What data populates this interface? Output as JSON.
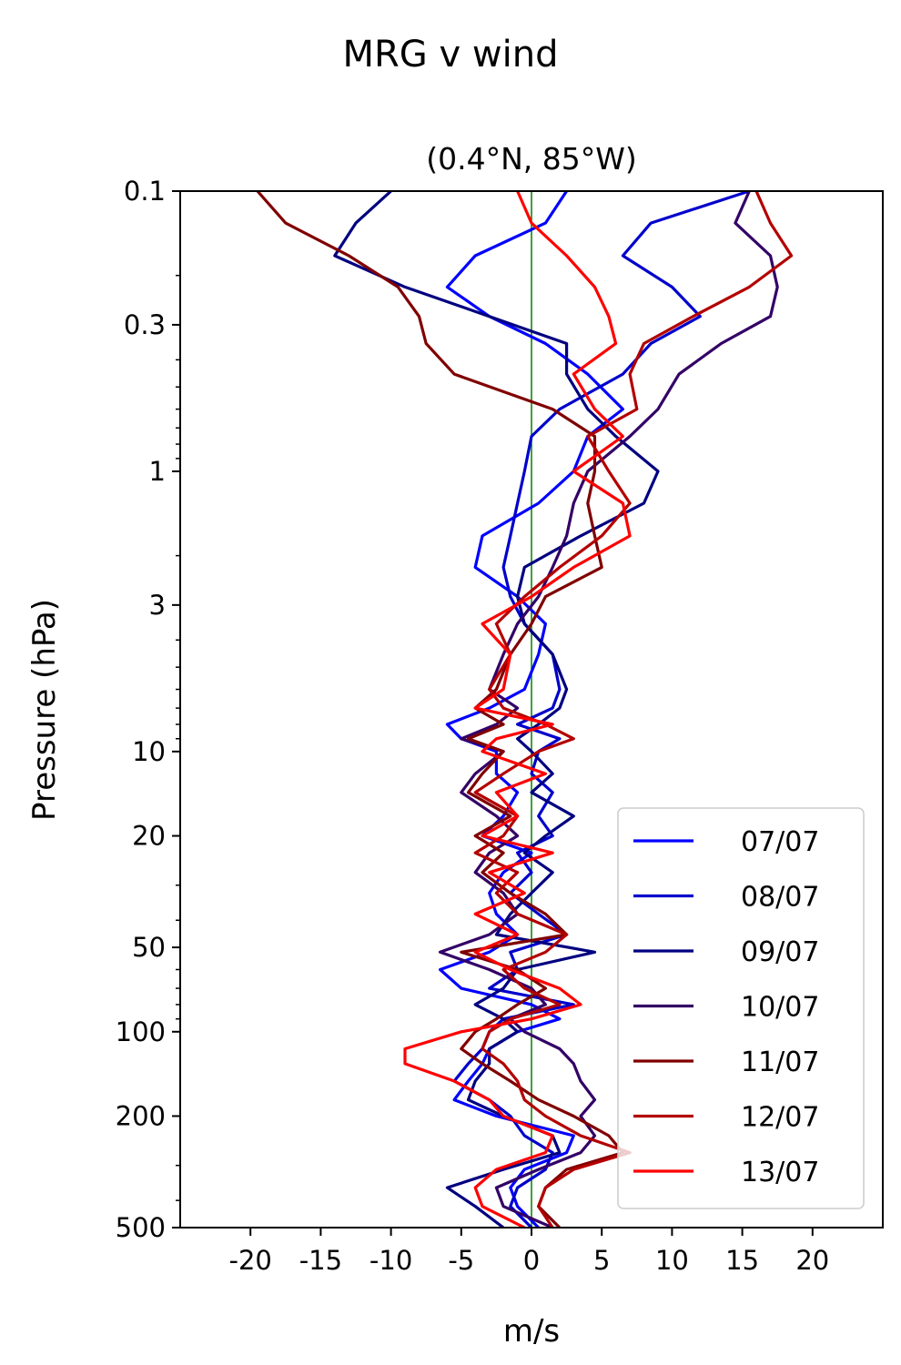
{
  "chart_data": {
    "type": "line",
    "suptitle": "MRG v wind",
    "title": "(0.4°N, 85°W)",
    "xlabel": "m/s",
    "ylabel": "Pressure (hPa)",
    "xlim": [
      -25,
      25
    ],
    "ylim": [
      500,
      0.1
    ],
    "yscale": "log",
    "x_ticks": [
      -20,
      -15,
      -10,
      -5,
      0,
      5,
      10,
      15,
      20
    ],
    "x_tick_labels": [
      "-20",
      "-15",
      "-10",
      "-5",
      "0",
      "5",
      "10",
      "15",
      "20"
    ],
    "y_ticks": [
      0.1,
      0.3,
      1,
      3,
      10,
      20,
      50,
      100,
      200,
      500
    ],
    "y_tick_labels": [
      "0.1",
      "0.3",
      "1",
      "3",
      "10",
      "20",
      "50",
      "100",
      "200",
      "500"
    ],
    "zero_line_color": "#008000",
    "legend_position": "lower right",
    "pressure_levels": [
      0.1,
      0.13,
      0.17,
      0.22,
      0.28,
      0.35,
      0.45,
      0.6,
      0.75,
      1,
      1.3,
      1.7,
      2.2,
      2.8,
      3.5,
      4.5,
      6,
      7,
      8,
      9,
      10,
      12,
      14,
      17,
      20,
      23,
      27,
      32,
      38,
      45,
      52,
      60,
      70,
      80,
      90,
      100,
      115,
      130,
      150,
      175,
      200,
      235,
      270,
      310,
      360,
      420,
      500
    ],
    "series": [
      {
        "name": "07/07",
        "color": "#0000ff",
        "values": [
          2.5,
          1.0,
          -4.0,
          -6.0,
          -3.0,
          1.0,
          4.0,
          6.5,
          4.0,
          3.0,
          0.5,
          -3.5,
          -4.0,
          -1.0,
          1.0,
          0.5,
          -0.5,
          -3.0,
          -6.0,
          -5.0,
          -2.5,
          -2.5,
          -1.0,
          -2.0,
          -3.5,
          0.0,
          -2.0,
          -3.0,
          -2.5,
          -1.0,
          -3.0,
          -6.5,
          -5.0,
          0.0,
          2.0,
          -1.0,
          -3.0,
          -3.5,
          -4.5,
          -5.5,
          -2.5,
          3.0,
          2.5,
          -0.5,
          -1.5,
          -1.0,
          0.5
        ]
      },
      {
        "name": "08/07",
        "color": "#0000cc",
        "values": [
          15.5,
          8.5,
          6.5,
          10.0,
          12.0,
          8.5,
          6.5,
          2.0,
          0.0,
          -0.5,
          -1.0,
          -1.5,
          -2.0,
          -1.5,
          -0.5,
          1.5,
          2.0,
          1.5,
          -1.0,
          2.0,
          0.5,
          0.0,
          1.5,
          0.5,
          1.5,
          -1.0,
          0.0,
          -1.5,
          0.5,
          2.5,
          -1.5,
          -1.0,
          -3.0,
          3.0,
          -2.0,
          -3.0,
          -3.5,
          -4.5,
          -5.5,
          -3.0,
          -1.5,
          -0.5,
          1.5,
          1.0,
          -1.0,
          -1.5,
          0.0
        ]
      },
      {
        "name": "09/07",
        "color": "#000080",
        "values": [
          -10.0,
          -12.5,
          -14.0,
          -9.0,
          -3.0,
          2.5,
          2.5,
          4.0,
          6.0,
          9.0,
          8.0,
          3.5,
          -0.5,
          -1.0,
          -0.5,
          1.5,
          2.5,
          2.0,
          0.5,
          -1.0,
          0.0,
          1.5,
          0.0,
          3.0,
          1.0,
          -0.5,
          1.5,
          0.0,
          -1.5,
          -2.5,
          4.5,
          -1.0,
          -2.0,
          -4.0,
          -2.0,
          -1.0,
          -3.0,
          -3.0,
          -4.0,
          -4.5,
          -2.0,
          1.5,
          2.0,
          -2.0,
          -6.0,
          -4.0,
          -2.0
        ]
      },
      {
        "name": "10/07",
        "color": "#330066",
        "values": [
          15.5,
          14.5,
          17.0,
          17.5,
          17.0,
          13.5,
          10.5,
          9.0,
          7.0,
          4.0,
          3.0,
          2.5,
          1.5,
          0.5,
          -1.0,
          -2.0,
          -3.0,
          -1.0,
          -2.5,
          -5.0,
          -2.0,
          -4.0,
          -5.0,
          -2.5,
          -1.0,
          -3.0,
          -4.0,
          -2.0,
          -1.0,
          -3.0,
          -6.5,
          -3.0,
          0.0,
          1.0,
          -1.5,
          -0.5,
          2.0,
          3.0,
          3.5,
          4.5,
          3.5,
          4.5,
          3.5,
          0.5,
          -2.5,
          -2.0,
          1.5
        ]
      },
      {
        "name": "11/07",
        "color": "#800000",
        "values": [
          -19.5,
          -17.5,
          -13.0,
          -9.5,
          -8.0,
          -7.5,
          -5.5,
          1.5,
          4.5,
          4.5,
          4.0,
          4.5,
          5.0,
          1.0,
          0.0,
          -1.5,
          -2.5,
          -4.0,
          -2.0,
          -4.5,
          -2.0,
          -3.5,
          -4.5,
          -1.5,
          -4.0,
          -2.0,
          -3.5,
          -1.5,
          1.0,
          2.5,
          -5.0,
          -1.0,
          1.0,
          -1.0,
          -2.5,
          -4.0,
          -5.0,
          -3.5,
          -1.5,
          0.5,
          3.0,
          5.5,
          6.5,
          2.5,
          1.0,
          0.5,
          2.0
        ]
      },
      {
        "name": "12/07",
        "color": "#b30000",
        "values": [
          16.0,
          17.0,
          18.5,
          15.5,
          11.5,
          8.0,
          7.0,
          7.5,
          4.0,
          5.5,
          7.0,
          5.0,
          2.0,
          -0.5,
          -2.5,
          -1.5,
          -3.0,
          -2.0,
          1.0,
          3.0,
          0.5,
          -2.0,
          -4.0,
          -1.0,
          -2.0,
          -4.0,
          -1.0,
          -2.5,
          -1.0,
          2.5,
          1.0,
          -2.0,
          -0.5,
          2.0,
          -1.5,
          -3.0,
          -3.5,
          -2.0,
          -1.0,
          -0.5,
          1.0,
          3.5,
          7.0,
          3.0,
          1.0,
          0.5,
          1.5
        ]
      },
      {
        "name": "13/07",
        "color": "#ff0000",
        "values": [
          -1.0,
          0.0,
          2.5,
          4.5,
          5.5,
          6.0,
          3.0,
          4.5,
          6.5,
          3.0,
          6.5,
          7.0,
          3.0,
          0.0,
          -3.5,
          -1.5,
          -2.0,
          -4.0,
          1.5,
          -2.5,
          -3.5,
          1.0,
          -2.5,
          -1.0,
          -3.5,
          1.5,
          -3.0,
          -0.5,
          -4.0,
          -1.0,
          -4.0,
          -1.5,
          2.0,
          3.5,
          0.0,
          -5.0,
          -9.0,
          -9.0,
          -5.5,
          -3.0,
          -2.0,
          1.5,
          1.0,
          -2.5,
          -4.0,
          -3.5,
          -0.5
        ]
      }
    ]
  }
}
